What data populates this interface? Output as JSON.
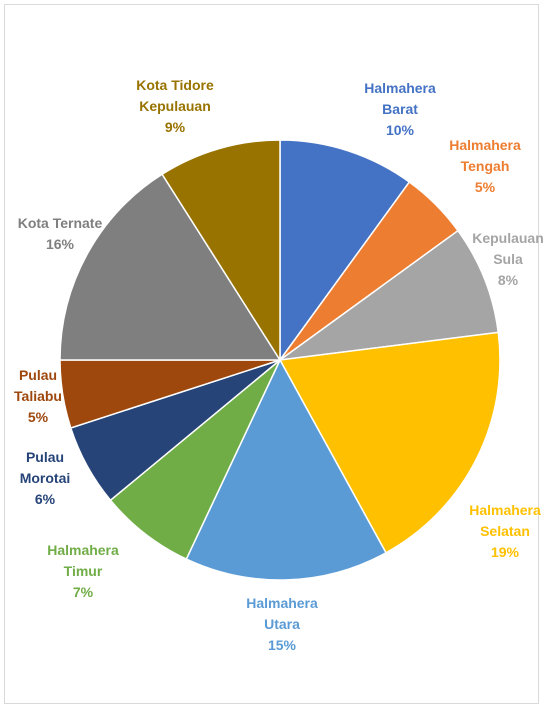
{
  "chart_data": {
    "type": "pie",
    "categories": [
      "Halmahera Barat",
      "Halmahera Tengah",
      "Kepulauan Sula",
      "Halmahera Selatan",
      "Halmahera Utara",
      "Halmahera Timur",
      "Pulau Morotai",
      "Pulau Taliabu",
      "Kota Ternate",
      "Kota Tidore Kepulauan"
    ],
    "values": [
      10,
      5,
      8,
      19,
      15,
      7,
      6,
      5,
      16,
      9
    ],
    "value_labels": [
      "10%",
      "5%",
      "8%",
      "19%",
      "15%",
      "7%",
      "6%",
      "5%",
      "16%",
      "9%"
    ],
    "colors": [
      "#4472c4",
      "#ed7d31",
      "#a5a5a5",
      "#ffc000",
      "#5b9bd5",
      "#70ad47",
      "#264478",
      "#9e480e",
      "#7f7f7f",
      "#997300"
    ]
  }
}
